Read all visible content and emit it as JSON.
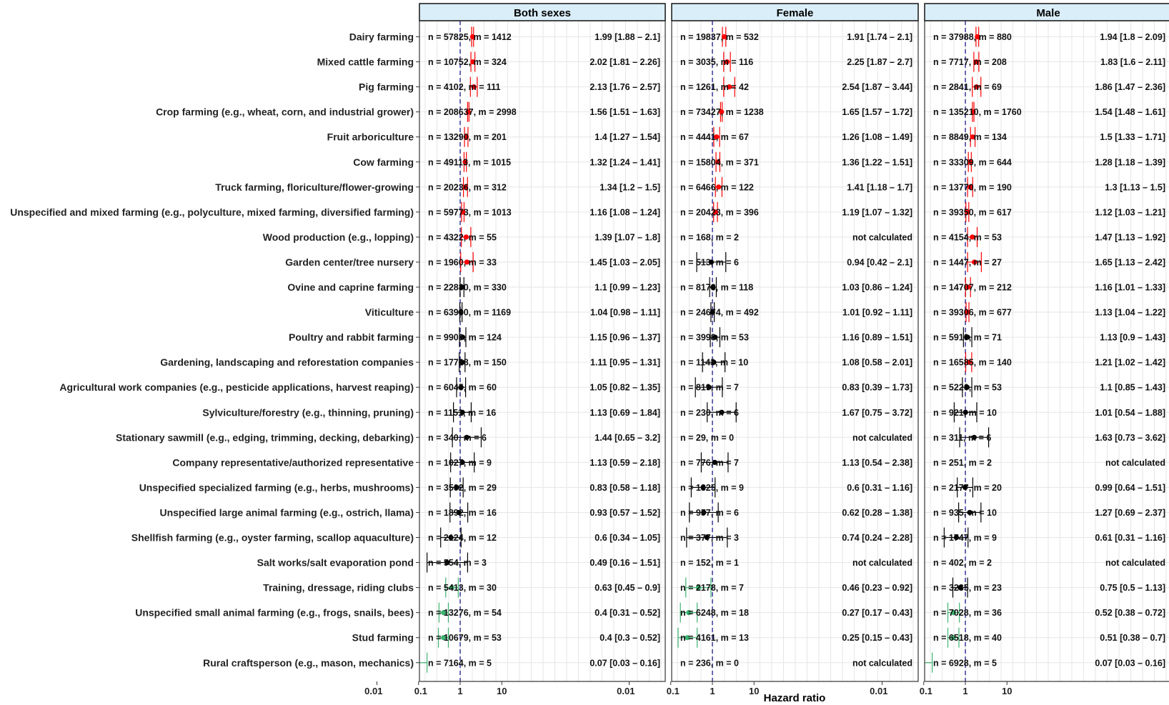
{
  "chart_data": {
    "type": "forest",
    "xlabel": "Hazard ratio",
    "x_scale": "log",
    "x_tick_labels": [
      "0.01",
      "0.1",
      "1",
      "10"
    ],
    "reference_line": 1,
    "colors": {
      "significant_high": "#ff0000",
      "not_significant": "#000000",
      "significant_low": "#3cb371"
    },
    "panels": [
      {
        "name": "Both sexes",
        "rows": [
          {
            "n": "n = 57825, m = 1412",
            "hr": 1.99,
            "lo": 1.88,
            "hi": 2.1,
            "ci": "1.99 [1.88 – 2.1]",
            "sig": "high"
          },
          {
            "n": "n = 10752, m = 324",
            "hr": 2.02,
            "lo": 1.81,
            "hi": 2.26,
            "ci": "2.02 [1.81 – 2.26]",
            "sig": "high"
          },
          {
            "n": "n = 4102, m = 111",
            "hr": 2.13,
            "lo": 1.76,
            "hi": 2.57,
            "ci": "2.13 [1.76 – 2.57]",
            "sig": "high"
          },
          {
            "n": "n = 208637, m = 2998",
            "hr": 1.56,
            "lo": 1.51,
            "hi": 1.63,
            "ci": "1.56 [1.51 – 1.63]",
            "sig": "high"
          },
          {
            "n": "n = 13290, m = 201",
            "hr": 1.4,
            "lo": 1.27,
            "hi": 1.54,
            "ci": "1.4 [1.27 – 1.54]",
            "sig": "high"
          },
          {
            "n": "n = 49113, m = 1015",
            "hr": 1.32,
            "lo": 1.24,
            "hi": 1.41,
            "ci": "1.32 [1.24 – 1.41]",
            "sig": "high"
          },
          {
            "n": "n = 20236, m = 312",
            "hr": 1.34,
            "lo": 1.2,
            "hi": 1.5,
            "ci": "1.34 [1.2 – 1.5]",
            "sig": "high"
          },
          {
            "n": "n = 59773, m = 1013",
            "hr": 1.16,
            "lo": 1.08,
            "hi": 1.24,
            "ci": "1.16 [1.08 – 1.24]",
            "sig": "high"
          },
          {
            "n": "n = 4322, m = 55",
            "hr": 1.39,
            "lo": 1.07,
            "hi": 1.8,
            "ci": "1.39 [1.07 – 1.8]",
            "sig": "high"
          },
          {
            "n": "n = 1960, m = 33",
            "hr": 1.45,
            "lo": 1.03,
            "hi": 2.05,
            "ci": "1.45 [1.03 – 2.05]",
            "sig": "high"
          },
          {
            "n": "n = 22880, m = 330",
            "hr": 1.1,
            "lo": 0.99,
            "hi": 1.23,
            "ci": "1.1 [0.99 – 1.23]",
            "sig": "none"
          },
          {
            "n": "n = 63980, m = 1169",
            "hr": 1.04,
            "lo": 0.98,
            "hi": 1.11,
            "ci": "1.04 [0.98 – 1.11]",
            "sig": "none"
          },
          {
            "n": "n = 9908, m = 124",
            "hr": 1.15,
            "lo": 0.96,
            "hi": 1.37,
            "ci": "1.15 [0.96 – 1.37]",
            "sig": "none"
          },
          {
            "n": "n = 17728, m = 150",
            "hr": 1.11,
            "lo": 0.95,
            "hi": 1.31,
            "ci": "1.11 [0.95 – 1.31]",
            "sig": "none"
          },
          {
            "n": "n = 6045, m = 60",
            "hr": 1.05,
            "lo": 0.82,
            "hi": 1.35,
            "ci": "1.05 [0.82 – 1.35]",
            "sig": "none"
          },
          {
            "n": "n = 1151, m = 16",
            "hr": 1.13,
            "lo": 0.69,
            "hi": 1.84,
            "ci": "1.13 [0.69 – 1.84]",
            "sig": "none"
          },
          {
            "n": "n = 340, m = 6",
            "hr": 1.44,
            "lo": 0.65,
            "hi": 3.2,
            "ci": "1.44 [0.65 – 3.2]",
            "sig": "none"
          },
          {
            "n": "n = 1027, m = 9",
            "hr": 1.13,
            "lo": 0.59,
            "hi": 2.18,
            "ci": "1.13 [0.59 – 2.18]",
            "sig": "none"
          },
          {
            "n": "n = 3502, m = 29",
            "hr": 0.83,
            "lo": 0.58,
            "hi": 1.18,
            "ci": "0.83 [0.58 – 1.18]",
            "sig": "none"
          },
          {
            "n": "n = 1892, m = 16",
            "hr": 0.93,
            "lo": 0.57,
            "hi": 1.52,
            "ci": "0.93 [0.57 – 1.52]",
            "sig": "none"
          },
          {
            "n": "n = 2124, m = 12",
            "hr": 0.6,
            "lo": 0.34,
            "hi": 1.05,
            "ci": "0.6 [0.34 – 1.05]",
            "sig": "none"
          },
          {
            "n": "n = 554, m = 3",
            "hr": 0.49,
            "lo": 0.16,
            "hi": 1.51,
            "ci": "0.49 [0.16 – 1.51]",
            "sig": "none"
          },
          {
            "n": "n = 5413, m = 30",
            "hr": 0.63,
            "lo": 0.45,
            "hi": 0.9,
            "ci": "0.63 [0.45 – 0.9]",
            "sig": "low"
          },
          {
            "n": "n = 13276, m = 54",
            "hr": 0.4,
            "lo": 0.31,
            "hi": 0.52,
            "ci": "0.4 [0.31 – 0.52]",
            "sig": "low"
          },
          {
            "n": "n = 10679, m = 53",
            "hr": 0.4,
            "lo": 0.3,
            "hi": 0.52,
            "ci": "0.4 [0.3 – 0.52]",
            "sig": "low"
          },
          {
            "n": "n = 7164, m = 5",
            "hr": 0.07,
            "lo": 0.03,
            "hi": 0.16,
            "ci": "0.07 [0.03 – 0.16]",
            "sig": "low"
          }
        ]
      },
      {
        "name": "Female",
        "rows": [
          {
            "n": "n = 19837, m = 532",
            "hr": 1.91,
            "lo": 1.74,
            "hi": 2.1,
            "ci": "1.91 [1.74 – 2.1]",
            "sig": "high"
          },
          {
            "n": "n = 3035, m = 116",
            "hr": 2.25,
            "lo": 1.87,
            "hi": 2.7,
            "ci": "2.25 [1.87 – 2.7]",
            "sig": "high"
          },
          {
            "n": "n = 1261, m = 42",
            "hr": 2.54,
            "lo": 1.87,
            "hi": 3.44,
            "ci": "2.54 [1.87 – 3.44]",
            "sig": "high"
          },
          {
            "n": "n = 73427, m = 1238",
            "hr": 1.65,
            "lo": 1.57,
            "hi": 1.72,
            "ci": "1.65 [1.57 – 1.72]",
            "sig": "high"
          },
          {
            "n": "n = 4441, m = 67",
            "hr": 1.26,
            "lo": 1.08,
            "hi": 1.49,
            "ci": "1.26 [1.08 – 1.49]",
            "sig": "high"
          },
          {
            "n": "n = 15804, m = 371",
            "hr": 1.36,
            "lo": 1.22,
            "hi": 1.51,
            "ci": "1.36 [1.22 – 1.51]",
            "sig": "high"
          },
          {
            "n": "n = 6466, m = 122",
            "hr": 1.41,
            "lo": 1.18,
            "hi": 1.7,
            "ci": "1.41 [1.18 – 1.7]",
            "sig": "high"
          },
          {
            "n": "n = 20423, m = 396",
            "hr": 1.19,
            "lo": 1.07,
            "hi": 1.32,
            "ci": "1.19 [1.07 – 1.32]",
            "sig": "high"
          },
          {
            "n": "n = 168, m = 2",
            "hr": null,
            "lo": null,
            "hi": null,
            "ci": "not calculated",
            "sig": "na"
          },
          {
            "n": "n = 513, m = 6",
            "hr": 0.94,
            "lo": 0.42,
            "hi": 2.1,
            "ci": "0.94 [0.42 – 2.1]",
            "sig": "none"
          },
          {
            "n": "n = 8173, m = 118",
            "hr": 1.03,
            "lo": 0.86,
            "hi": 1.24,
            "ci": "1.03 [0.86 – 1.24]",
            "sig": "none"
          },
          {
            "n": "n = 24674, m = 492",
            "hr": 1.01,
            "lo": 0.92,
            "hi": 1.11,
            "ci": "1.01 [0.92 – 1.11]",
            "sig": "none"
          },
          {
            "n": "n = 3998, m = 53",
            "hr": 1.16,
            "lo": 0.89,
            "hi": 1.51,
            "ci": "1.16 [0.89 – 1.51]",
            "sig": "none"
          },
          {
            "n": "n = 1143, m = 10",
            "hr": 1.08,
            "lo": 0.58,
            "hi": 2.01,
            "ci": "1.08 [0.58 – 2.01]",
            "sig": "none"
          },
          {
            "n": "n = 819, m = 7",
            "hr": 0.83,
            "lo": 0.39,
            "hi": 1.73,
            "ci": "0.83 [0.39 – 1.73]",
            "sig": "none"
          },
          {
            "n": "n = 230, m = 6",
            "hr": 1.67,
            "lo": 0.75,
            "hi": 3.72,
            "ci": "1.67 [0.75 – 3.72]",
            "sig": "none"
          },
          {
            "n": "n = 29, m = 0",
            "hr": null,
            "lo": null,
            "hi": null,
            "ci": "not calculated",
            "sig": "na"
          },
          {
            "n": "n = 776, m = 7",
            "hr": 1.13,
            "lo": 0.54,
            "hi": 2.38,
            "ci": "1.13 [0.54 – 2.38]",
            "sig": "none"
          },
          {
            "n": "n = 1325, m = 9",
            "hr": 0.6,
            "lo": 0.31,
            "hi": 1.16,
            "ci": "0.6 [0.31 – 1.16]",
            "sig": "none"
          },
          {
            "n": "n = 957, m = 6",
            "hr": 0.62,
            "lo": 0.28,
            "hi": 1.38,
            "ci": "0.62 [0.28 – 1.38]",
            "sig": "none"
          },
          {
            "n": "n = 377, m = 3",
            "hr": 0.74,
            "lo": 0.24,
            "hi": 2.28,
            "ci": "0.74 [0.24 – 2.28]",
            "sig": "none"
          },
          {
            "n": "n = 152, m = 1",
            "hr": null,
            "lo": null,
            "hi": null,
            "ci": "not calculated",
            "sig": "na"
          },
          {
            "n": "n = 2178, m = 7",
            "hr": 0.46,
            "lo": 0.23,
            "hi": 0.92,
            "ci": "0.46 [0.23 – 0.92]",
            "sig": "low"
          },
          {
            "n": "n = 6248, m = 18",
            "hr": 0.27,
            "lo": 0.17,
            "hi": 0.43,
            "ci": "0.27 [0.17 – 0.43]",
            "sig": "low"
          },
          {
            "n": "n = 4161, m = 13",
            "hr": 0.25,
            "lo": 0.15,
            "hi": 0.43,
            "ci": "0.25 [0.15 – 0.43]",
            "sig": "low"
          },
          {
            "n": "n = 236, m = 0",
            "hr": null,
            "lo": null,
            "hi": null,
            "ci": "not calculated",
            "sig": "na"
          }
        ]
      },
      {
        "name": "Male",
        "rows": [
          {
            "n": "n = 37988, m = 880",
            "hr": 1.94,
            "lo": 1.8,
            "hi": 2.09,
            "ci": "1.94 [1.8 – 2.09]",
            "sig": "high"
          },
          {
            "n": "n = 7717, m = 208",
            "hr": 1.83,
            "lo": 1.6,
            "hi": 2.11,
            "ci": "1.83 [1.6 – 2.11]",
            "sig": "high"
          },
          {
            "n": "n = 2841, m = 69",
            "hr": 1.86,
            "lo": 1.47,
            "hi": 2.36,
            "ci": "1.86 [1.47 – 2.36]",
            "sig": "high"
          },
          {
            "n": "n = 135210, m = 1760",
            "hr": 1.54,
            "lo": 1.48,
            "hi": 1.61,
            "ci": "1.54 [1.48 – 1.61]",
            "sig": "high"
          },
          {
            "n": "n = 8849, m = 134",
            "hr": 1.5,
            "lo": 1.33,
            "hi": 1.71,
            "ci": "1.5 [1.33 – 1.71]",
            "sig": "high"
          },
          {
            "n": "n = 33309, m = 644",
            "hr": 1.28,
            "lo": 1.18,
            "hi": 1.39,
            "ci": "1.28 [1.18 – 1.39]",
            "sig": "high"
          },
          {
            "n": "n = 13770, m = 190",
            "hr": 1.3,
            "lo": 1.13,
            "hi": 1.5,
            "ci": "1.3 [1.13 – 1.5]",
            "sig": "high"
          },
          {
            "n": "n = 39350, m = 617",
            "hr": 1.12,
            "lo": 1.03,
            "hi": 1.21,
            "ci": "1.12 [1.03 – 1.21]",
            "sig": "high"
          },
          {
            "n": "n = 4154, m = 53",
            "hr": 1.47,
            "lo": 1.13,
            "hi": 1.92,
            "ci": "1.47 [1.13 – 1.92]",
            "sig": "high"
          },
          {
            "n": "n = 1447, m = 27",
            "hr": 1.65,
            "lo": 1.13,
            "hi": 2.42,
            "ci": "1.65 [1.13 – 2.42]",
            "sig": "high"
          },
          {
            "n": "n = 14707, m = 212",
            "hr": 1.16,
            "lo": 1.01,
            "hi": 1.33,
            "ci": "1.16 [1.01 – 1.33]",
            "sig": "high"
          },
          {
            "n": "n = 39306, m = 677",
            "hr": 1.13,
            "lo": 1.04,
            "hi": 1.22,
            "ci": "1.13 [1.04 – 1.22]",
            "sig": "high"
          },
          {
            "n": "n = 5910, m = 71",
            "hr": 1.13,
            "lo": 0.9,
            "hi": 1.43,
            "ci": "1.13 [0.9 – 1.43]",
            "sig": "none"
          },
          {
            "n": "n = 16585, m = 140",
            "hr": 1.21,
            "lo": 1.02,
            "hi": 1.42,
            "ci": "1.21 [1.02 – 1.42]",
            "sig": "high"
          },
          {
            "n": "n = 5226, m = 53",
            "hr": 1.1,
            "lo": 0.85,
            "hi": 1.43,
            "ci": "1.1 [0.85 – 1.43]",
            "sig": "none"
          },
          {
            "n": "n = 921, m = 10",
            "hr": 1.01,
            "lo": 0.54,
            "hi": 1.88,
            "ci": "1.01 [0.54 – 1.88]",
            "sig": "none"
          },
          {
            "n": "n = 311, m = 6",
            "hr": 1.63,
            "lo": 0.73,
            "hi": 3.62,
            "ci": "1.63 [0.73 – 3.62]",
            "sig": "none"
          },
          {
            "n": "n = 251, m = 2",
            "hr": null,
            "lo": null,
            "hi": null,
            "ci": "not calculated",
            "sig": "na"
          },
          {
            "n": "n = 2177, m = 20",
            "hr": 0.99,
            "lo": 0.64,
            "hi": 1.51,
            "ci": "0.99 [0.64 – 1.51]",
            "sig": "none"
          },
          {
            "n": "n = 935, m = 10",
            "hr": 1.27,
            "lo": 0.69,
            "hi": 2.37,
            "ci": "1.27 [0.69 – 2.37]",
            "sig": "none"
          },
          {
            "n": "n = 1747, m = 9",
            "hr": 0.61,
            "lo": 0.31,
            "hi": 1.16,
            "ci": "0.61 [0.31 – 1.16]",
            "sig": "none"
          },
          {
            "n": "n = 402, m = 2",
            "hr": null,
            "lo": null,
            "hi": null,
            "ci": "not calculated",
            "sig": "na"
          },
          {
            "n": "n = 3235, m = 23",
            "hr": 0.75,
            "lo": 0.5,
            "hi": 1.13,
            "ci": "0.75 [0.5 – 1.13]",
            "sig": "none"
          },
          {
            "n": "n = 7028, m = 36",
            "hr": 0.52,
            "lo": 0.38,
            "hi": 0.72,
            "ci": "0.52 [0.38 – 0.72]",
            "sig": "low"
          },
          {
            "n": "n = 6518, m = 40",
            "hr": 0.51,
            "lo": 0.38,
            "hi": 0.7,
            "ci": "0.51 [0.38 – 0.7]",
            "sig": "low"
          },
          {
            "n": "n = 6928, m = 5",
            "hr": 0.07,
            "lo": 0.03,
            "hi": 0.16,
            "ci": "0.07 [0.03 – 0.16]",
            "sig": "low"
          }
        ]
      }
    ],
    "categories": [
      "Dairy farming",
      "Mixed cattle farming",
      "Pig farming",
      "Crop farming (e.g., wheat, corn, and industrial grower)",
      "Fruit arboriculture",
      "Cow farming",
      "Truck farming, floriculture/flower-growing",
      "Unspecified and mixed farming (e.g., polyculture, mixed farming, diversified farming)",
      "Wood production (e.g., lopping)",
      "Garden center/tree nursery",
      "Ovine and caprine farming",
      "Viticulture",
      "Poultry and rabbit farming",
      "Gardening, landscaping and reforestation companies",
      "Agricultural work companies (e.g., pesticide applications, harvest reaping)",
      "Sylviculture/forestry (e.g., thinning, pruning)",
      "Stationary sawmill (e.g., edging, trimming, decking, debarking)",
      "Company representative/authorized representative",
      "Unspecified specialized farming (e.g., herbs, mushrooms)",
      "Unspecified large animal farming (e.g., ostrich, llama)",
      "Shellfish farming (e.g., oyster farming, scallop aquaculture)",
      "Salt works/salt evaporation pond",
      "Training, dressage, riding clubs",
      "Unspecified small animal farming (e.g., frogs, snails, bees)",
      "Stud farming",
      "Rural craftsperson (e.g., mason, mechanics)"
    ]
  }
}
